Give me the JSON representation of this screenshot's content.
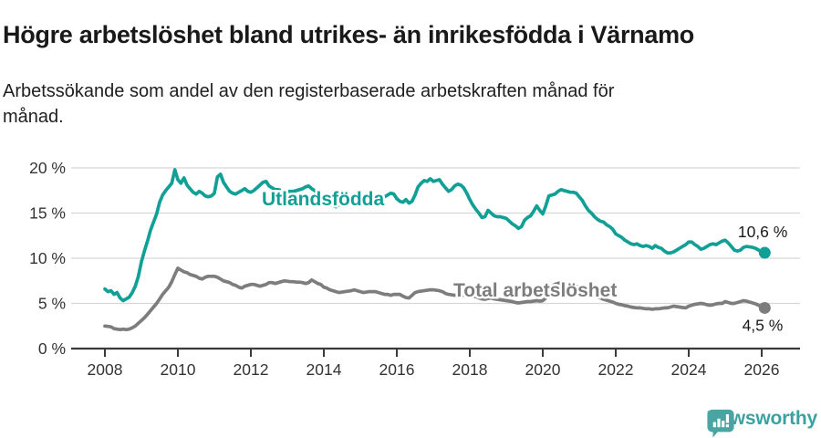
{
  "header": {
    "title": "Högre arbetslöshet bland utrikes- än inrikesfödda i Värnamo",
    "subtitle": "Arbetssökande som andel av den registerbaserade arbetskraften månad för\nmånad."
  },
  "footer": {
    "brand": "Newsworthy",
    "logo_icon": "bar-chart-speech-bubble-icon"
  },
  "colors": {
    "foreign_born_line": "#12a096",
    "total_line": "#7d7d7d",
    "axis": "#3a3a3a",
    "gridline": "#d8d8d8",
    "tick_text": "#333333",
    "title_text": "#191919",
    "brand_teal": "#3da19f",
    "logo_bubble": "#4aa5a2"
  },
  "chart_data": {
    "type": "line",
    "title": "Högre arbetslöshet bland utrikes- än inrikesfödda i Värnamo",
    "subtitle": "Arbetssökande som andel av den registerbaserade arbetskraften månad för månad.",
    "grid": "horizontal",
    "legend_position": "inline-labels",
    "x_axis": {
      "unit": "year",
      "tick_years": [
        2008,
        2010,
        2012,
        2014,
        2016,
        2018,
        2020,
        2022,
        2024,
        2026
      ],
      "range_years": [
        2007.1,
        2027.1
      ]
    },
    "y_axis": {
      "tick_values": [
        0,
        5,
        10,
        15,
        20
      ],
      "tick_labels": [
        "0 %",
        "5 %",
        "10 %",
        "15 %",
        "20 %"
      ],
      "range": [
        0,
        20
      ]
    },
    "series": [
      {
        "name": "Utlandsfödda",
        "color": "#12a096",
        "start_year": 2008,
        "points_per_year": 12,
        "end_value": 10.6,
        "end_label": "10,6 %",
        "values": [
          6.6,
          6.3,
          6.4,
          6.0,
          6.2,
          5.6,
          5.3,
          5.5,
          5.7,
          6.2,
          6.9,
          8.0,
          9.6,
          10.8,
          11.9,
          13.1,
          14.0,
          14.9,
          16.2,
          17.0,
          17.5,
          17.9,
          18.3,
          19.8,
          18.7,
          18.3,
          18.9,
          18.1,
          17.7,
          17.3,
          17.1,
          17.4,
          17.2,
          16.9,
          16.8,
          16.9,
          17.2,
          19.0,
          19.3,
          18.4,
          17.9,
          17.4,
          17.2,
          17.1,
          17.3,
          17.5,
          17.7,
          17.4,
          17.3,
          17.5,
          17.8,
          18.1,
          18.4,
          18.5,
          18.0,
          17.8,
          17.6,
          17.6,
          17.5,
          17.5,
          17.4,
          17.4,
          17.4,
          17.5,
          17.6,
          17.7,
          17.9,
          18.0,
          17.7,
          17.5,
          17.2,
          17.0,
          16.8,
          16.4,
          16.1,
          15.8,
          15.7,
          15.9,
          16.1,
          16.3,
          16.4,
          16.4,
          16.3,
          16.3,
          16.4,
          16.5,
          16.6,
          16.5,
          16.5,
          16.6,
          16.6,
          16.7,
          16.8,
          17.0,
          17.2,
          17.1,
          16.6,
          16.3,
          16.2,
          16.5,
          16.1,
          16.3,
          17.0,
          17.9,
          18.3,
          18.6,
          18.5,
          18.8,
          18.5,
          18.6,
          18.7,
          18.2,
          17.8,
          17.4,
          17.6,
          18.0,
          18.2,
          18.1,
          17.8,
          17.2,
          16.5,
          15.9,
          15.4,
          15.0,
          14.5,
          14.6,
          15.3,
          15.0,
          14.7,
          14.6,
          14.6,
          14.5,
          14.4,
          14.1,
          13.8,
          13.6,
          13.3,
          13.5,
          14.2,
          14.5,
          14.7,
          15.2,
          15.8,
          15.3,
          14.9,
          15.8,
          16.9,
          17.0,
          17.1,
          17.4,
          17.6,
          17.5,
          17.4,
          17.3,
          17.3,
          17.2,
          16.8,
          16.4,
          15.8,
          15.3,
          15.0,
          14.6,
          14.3,
          14.1,
          14.0,
          13.7,
          13.5,
          13.2,
          12.7,
          12.5,
          12.3,
          12.0,
          11.8,
          11.6,
          11.5,
          11.6,
          11.4,
          11.3,
          11.4,
          11.3,
          11.1,
          11.4,
          11.2,
          11.1,
          10.8,
          10.6,
          10.6,
          10.7,
          10.9,
          11.1,
          11.3,
          11.5,
          11.8,
          11.8,
          11.5,
          11.3,
          11.0,
          11.1,
          11.3,
          11.5,
          11.6,
          11.5,
          11.7,
          11.9,
          12.0,
          11.7,
          11.3,
          10.9,
          10.8,
          10.9,
          11.2,
          11.3,
          11.25,
          11.2,
          11.1,
          10.9,
          10.7,
          10.6
        ]
      },
      {
        "name": "Total arbetslöshet",
        "color": "#7d7d7d",
        "start_year": 2008,
        "points_per_year": 12,
        "end_value": 4.5,
        "end_label": "4,5 %",
        "values": [
          2.5,
          2.45,
          2.4,
          2.2,
          2.15,
          2.1,
          2.15,
          2.1,
          2.15,
          2.3,
          2.5,
          2.8,
          3.1,
          3.4,
          3.8,
          4.2,
          4.6,
          5.0,
          5.5,
          6.0,
          6.4,
          6.8,
          7.4,
          8.2,
          8.9,
          8.7,
          8.5,
          8.4,
          8.2,
          8.1,
          8.0,
          7.8,
          7.7,
          7.9,
          8.0,
          8.0,
          8.0,
          7.9,
          7.7,
          7.5,
          7.4,
          7.3,
          7.1,
          7.0,
          6.8,
          6.7,
          6.9,
          7.0,
          7.1,
          7.1,
          7.0,
          6.9,
          7.0,
          7.1,
          7.3,
          7.3,
          7.2,
          7.3,
          7.4,
          7.5,
          7.45,
          7.4,
          7.4,
          7.35,
          7.35,
          7.3,
          7.2,
          7.3,
          7.6,
          7.4,
          7.2,
          7.1,
          6.8,
          6.7,
          6.5,
          6.4,
          6.3,
          6.2,
          6.25,
          6.3,
          6.35,
          6.4,
          6.5,
          6.4,
          6.3,
          6.2,
          6.25,
          6.3,
          6.3,
          6.3,
          6.2,
          6.1,
          6.0,
          6.0,
          5.9,
          6.0,
          6.0,
          6.0,
          5.8,
          5.65,
          5.6,
          5.9,
          6.2,
          6.3,
          6.35,
          6.4,
          6.45,
          6.5,
          6.5,
          6.45,
          6.4,
          6.3,
          6.1,
          6.0,
          5.95,
          5.9,
          5.9,
          5.95,
          5.9,
          5.9,
          5.85,
          5.8,
          5.75,
          5.6,
          5.5,
          5.45,
          5.55,
          5.6,
          5.5,
          5.45,
          5.4,
          5.35,
          5.3,
          5.25,
          5.2,
          5.1,
          5.05,
          5.1,
          5.15,
          5.2,
          5.2,
          5.25,
          5.3,
          5.25,
          5.3,
          5.6,
          6.3,
          6.9,
          7.1,
          7.2,
          7.3,
          7.25,
          7.2,
          7.1,
          7.0,
          6.9,
          6.7,
          6.5,
          6.3,
          6.1,
          6.0,
          5.85,
          5.7,
          5.6,
          5.45,
          5.35,
          5.25,
          5.15,
          5.0,
          4.9,
          4.85,
          4.75,
          4.7,
          4.6,
          4.55,
          4.5,
          4.5,
          4.45,
          4.4,
          4.4,
          4.35,
          4.4,
          4.4,
          4.45,
          4.5,
          4.5,
          4.6,
          4.7,
          4.65,
          4.6,
          4.55,
          4.5,
          4.7,
          4.8,
          4.9,
          4.95,
          5.0,
          4.95,
          4.85,
          4.8,
          4.85,
          4.95,
          5.0,
          5.0,
          5.2,
          5.1,
          5.0,
          5.0,
          5.1,
          5.2,
          5.3,
          5.25,
          5.15,
          5.05,
          4.95,
          4.8,
          4.6,
          4.5
        ]
      }
    ]
  }
}
